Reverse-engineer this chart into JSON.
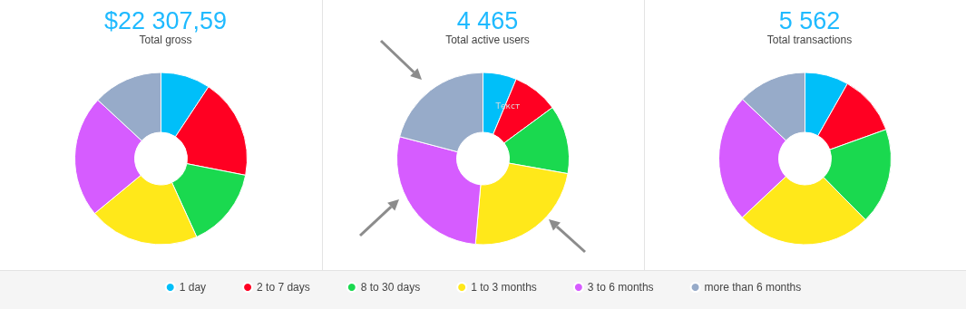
{
  "chart_data": [
    {
      "type": "donut",
      "title": "$22 307,59",
      "subtitle": "Total gross",
      "categories": [
        null,
        null,
        null,
        null,
        null,
        null
      ],
      "values": [
        9.3,
        18.8,
        15.1,
        20.8,
        22.9,
        13.1
      ],
      "colors": [
        "#00bff9",
        "#ff0022",
        "#1ad94f",
        "#ffe81a",
        "#d65cff",
        "#97abc9"
      ]
    },
    {
      "type": "donut",
      "title": "4 465",
      "subtitle": "Total active users",
      "categories": [
        "1 day",
        "2 to 7 days",
        "8 to 30 days",
        "1 to 3 months",
        "3 to 6 months",
        "more than 6 months"
      ],
      "values": [
        6.3,
        8.6,
        12.9,
        23.6,
        27.7,
        20.9
      ],
      "colors": [
        "#00bff9",
        "#ff0022",
        "#1ad94f",
        "#ffe81a",
        "#d65cff",
        "#97abc9"
      ],
      "annotations": [
        "Текст"
      ],
      "legend": "bottom"
    },
    {
      "type": "donut",
      "title": "5 562",
      "subtitle": "Total transactions",
      "categories": [
        null,
        null,
        null,
        null,
        null,
        null
      ],
      "values": [
        8.2,
        11.3,
        18.1,
        25.4,
        24.1,
        12.9
      ],
      "colors": [
        "#00bff9",
        "#ff0022",
        "#1ad94f",
        "#ffe81a",
        "#d65cff",
        "#97abc9"
      ]
    }
  ]
}
